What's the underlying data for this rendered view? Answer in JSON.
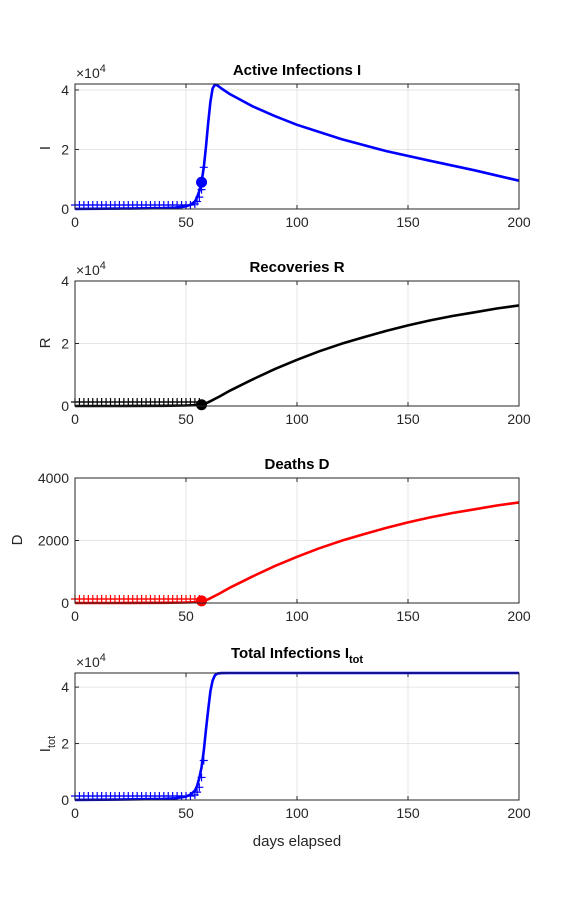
{
  "colors": {
    "blue": "#0000ff",
    "black": "#000000",
    "red": "#ff0000",
    "grid": "#e6e6e6",
    "axis": "#262626"
  },
  "xlabel": "days elapsed",
  "chart_data": [
    {
      "type": "line",
      "title": "Active Infections  I",
      "ylabel": "I",
      "exponent_label": "×10",
      "exponent_power": "4",
      "x_ticks": [
        "0",
        "50",
        "100",
        "150",
        "200"
      ],
      "y_ticks": [
        "0",
        "2",
        "4"
      ],
      "xlim": [
        0,
        200
      ],
      "ylim": [
        0,
        42000
      ],
      "grid": true,
      "color": "#0000ff",
      "series": [
        {
          "x": [
            0,
            20,
            40,
            45,
            50,
            52,
            54,
            55,
            56,
            57,
            58,
            59,
            60,
            61,
            62,
            63,
            64,
            66,
            70,
            80,
            90,
            100,
            120,
            140,
            160,
            180,
            200
          ],
          "y": [
            50,
            120,
            300,
            450,
            900,
            1400,
            2500,
            4000,
            6000,
            9000,
            14000,
            21000,
            29000,
            36000,
            40500,
            41800,
            41600,
            40500,
            38500,
            34500,
            31200,
            28300,
            23500,
            19500,
            16200,
            13000,
            9500
          ]
        }
      ],
      "markers": {
        "x": [
          0,
          2,
          4,
          6,
          8,
          10,
          12,
          14,
          16,
          18,
          20,
          22,
          24,
          26,
          28,
          30,
          32,
          34,
          36,
          38,
          40,
          42,
          44,
          46,
          48,
          50,
          52,
          54,
          55,
          56,
          57,
          58
        ],
        "y": [
          50,
          55,
          60,
          65,
          70,
          80,
          90,
          100,
          110,
          120,
          130,
          145,
          160,
          175,
          195,
          215,
          240,
          265,
          290,
          320,
          360,
          410,
          470,
          550,
          650,
          800,
          1100,
          1700,
          2500,
          4000,
          6500,
          14000
        ]
      },
      "current_point": {
        "x": 57,
        "y": 9000
      }
    },
    {
      "type": "line",
      "title": "Recoveries  R",
      "ylabel": "R",
      "exponent_label": "×10",
      "exponent_power": "4",
      "x_ticks": [
        "0",
        "50",
        "100",
        "150",
        "200"
      ],
      "y_ticks": [
        "0",
        "2",
        "4"
      ],
      "xlim": [
        0,
        200
      ],
      "ylim": [
        0,
        40000
      ],
      "grid": true,
      "color": "#000000",
      "series": [
        {
          "x": [
            0,
            20,
            40,
            50,
            55,
            57,
            60,
            65,
            70,
            80,
            90,
            100,
            110,
            120,
            130,
            140,
            150,
            160,
            170,
            180,
            190,
            200
          ],
          "y": [
            0,
            0,
            50,
            150,
            300,
            450,
            1200,
            3000,
            5000,
            8500,
            11800,
            14800,
            17500,
            19900,
            22000,
            24000,
            25800,
            27400,
            28800,
            30000,
            31200,
            32200
          ]
        }
      ],
      "markers": {
        "x": [
          0,
          2,
          4,
          6,
          8,
          10,
          12,
          14,
          16,
          18,
          20,
          22,
          24,
          26,
          28,
          30,
          32,
          34,
          36,
          38,
          40,
          42,
          44,
          46,
          48,
          50,
          52,
          54,
          56
        ],
        "y": [
          0,
          0,
          0,
          0,
          0,
          0,
          0,
          0,
          0,
          0,
          0,
          0,
          0,
          0,
          0,
          0,
          0,
          0,
          0,
          0,
          0,
          0,
          0,
          0,
          0,
          0,
          0,
          0,
          0
        ]
      },
      "current_point": {
        "x": 57,
        "y": 400
      }
    },
    {
      "type": "line",
      "title": "Deaths  D",
      "ylabel": "D",
      "exponent_label": "",
      "exponent_power": "",
      "x_ticks": [
        "0",
        "50",
        "100",
        "150",
        "200"
      ],
      "y_ticks": [
        "0",
        "2000",
        "4000"
      ],
      "xlim": [
        0,
        200
      ],
      "ylim": [
        0,
        4000
      ],
      "grid": true,
      "color": "#ff0000",
      "series": [
        {
          "x": [
            0,
            20,
            40,
            50,
            55,
            57,
            60,
            65,
            70,
            80,
            90,
            100,
            110,
            120,
            130,
            140,
            150,
            160,
            170,
            180,
            190,
            200
          ],
          "y": [
            0,
            0,
            5,
            15,
            30,
            45,
            120,
            300,
            500,
            850,
            1180,
            1480,
            1750,
            1990,
            2200,
            2400,
            2580,
            2740,
            2880,
            3000,
            3120,
            3220
          ]
        }
      ],
      "markers": {
        "x": [
          0,
          2,
          4,
          6,
          8,
          10,
          12,
          14,
          16,
          18,
          20,
          22,
          24,
          26,
          28,
          30,
          32,
          34,
          36,
          38,
          40,
          42,
          44,
          46,
          48,
          50,
          52,
          54,
          56
        ],
        "y": [
          0,
          0,
          0,
          0,
          0,
          0,
          0,
          0,
          0,
          0,
          0,
          0,
          0,
          0,
          0,
          0,
          0,
          0,
          0,
          0,
          0,
          0,
          0,
          0,
          0,
          0,
          0,
          0,
          0
        ]
      },
      "current_point": {
        "x": 57,
        "y": 70
      }
    },
    {
      "type": "line",
      "title_main": "Total Infections I",
      "title_sub": "tot",
      "ylabel_main": "I",
      "ylabel_sub": "tot",
      "exponent_label": "×10",
      "exponent_power": "4",
      "x_ticks": [
        "0",
        "50",
        "100",
        "150",
        "200"
      ],
      "y_ticks": [
        "0",
        "2",
        "4"
      ],
      "xlim": [
        0,
        200
      ],
      "ylim": [
        0,
        45000
      ],
      "grid": true,
      "color": "#0000ff",
      "series": [
        {
          "x": [
            0,
            20,
            40,
            45,
            50,
            52,
            54,
            55,
            56,
            57,
            58,
            59,
            60,
            61,
            62,
            63,
            64,
            65,
            66,
            70,
            100,
            200
          ],
          "y": [
            50,
            150,
            400,
            600,
            1200,
            1900,
            3300,
            5000,
            7800,
            11500,
            17500,
            25000,
            32000,
            38500,
            42300,
            44200,
            44800,
            44900,
            44950,
            45000,
            45000,
            45000
          ]
        }
      ],
      "markers": {
        "x": [
          0,
          2,
          4,
          6,
          8,
          10,
          12,
          14,
          16,
          18,
          20,
          22,
          24,
          26,
          28,
          30,
          32,
          34,
          36,
          38,
          40,
          42,
          44,
          46,
          48,
          50,
          52,
          54,
          55,
          56,
          57,
          58
        ],
        "y": [
          50,
          55,
          60,
          65,
          70,
          80,
          90,
          100,
          110,
          120,
          130,
          145,
          160,
          175,
          195,
          215,
          240,
          265,
          290,
          320,
          360,
          410,
          470,
          550,
          650,
          800,
          1100,
          1800,
          2800,
          4500,
          8000,
          14000
        ]
      },
      "current_point": null
    }
  ]
}
